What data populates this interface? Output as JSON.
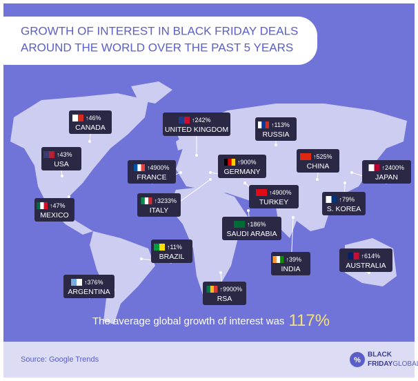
{
  "header": {
    "title_lines": [
      "GROWTH OF INTEREST IN BLACK FRIDAY DEALS",
      "AROUND THE WORLD OVER THE PAST 5 YEARS"
    ]
  },
  "countries": [
    {
      "name": "CANADA",
      "growth": "↑46%"
    },
    {
      "name": "UNITED KINGDOM",
      "growth": "↑242%"
    },
    {
      "name": "RUSSIA",
      "growth": "↑113%"
    },
    {
      "name": "USA",
      "growth": "↑43%"
    },
    {
      "name": "GERMANY",
      "growth": "↑900%"
    },
    {
      "name": "FRANCE",
      "growth": "↑4900%"
    },
    {
      "name": "CHINA",
      "growth": "↑525%"
    },
    {
      "name": "JAPAN",
      "growth": "↑2400%"
    },
    {
      "name": "MEXICO",
      "growth": "↑47%"
    },
    {
      "name": "ITALY",
      "growth": "↑3233%"
    },
    {
      "name": "TURKEY",
      "growth": "↑4900%"
    },
    {
      "name": "S. KOREA",
      "growth": "↑79%"
    },
    {
      "name": "SAUDI ARABIA",
      "growth": "↑186%"
    },
    {
      "name": "BRAZIL",
      "growth": "↑11%"
    },
    {
      "name": "INDIA",
      "growth": "↑39%"
    },
    {
      "name": "AUSTRALIA",
      "growth": "↑614%"
    },
    {
      "name": "ARGENTINA",
      "growth": "↑376%"
    },
    {
      "name": "RSA",
      "growth": "↑9900%"
    }
  ],
  "summary": {
    "text": "The average global growth of interest was",
    "value": "117%"
  },
  "footer": {
    "source": "Source: Google Trends",
    "logo_symbol": "%",
    "logo_lines": [
      "BLACK",
      "FRIDAY"
    ],
    "logo_suffix": "GLOBAL"
  }
}
